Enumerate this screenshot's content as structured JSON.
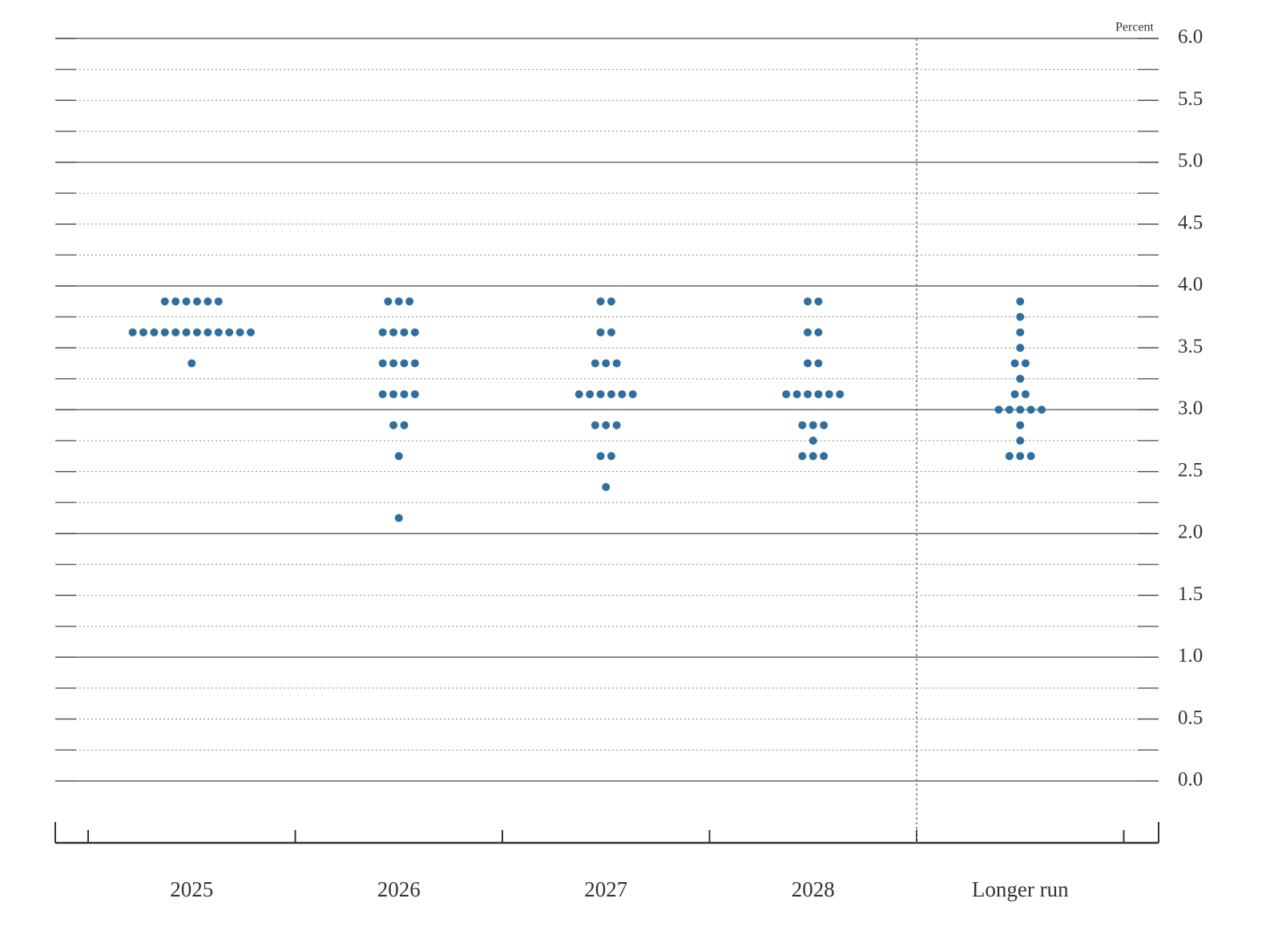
{
  "chart_data": {
    "type": "dot",
    "y_label": "Percent",
    "categories": [
      "2025",
      "2026",
      "2027",
      "2028",
      "Longer run"
    ],
    "color": "#2f6f9f",
    "dots": [
      [
        {
          "rate": 3.875,
          "count": 6
        },
        {
          "rate": 3.625,
          "count": 12
        },
        {
          "rate": 3.375,
          "count": 1
        }
      ],
      [
        {
          "rate": 3.875,
          "count": 3
        },
        {
          "rate": 3.625,
          "count": 4
        },
        {
          "rate": 3.375,
          "count": 4
        },
        {
          "rate": 3.125,
          "count": 4
        },
        {
          "rate": 2.875,
          "count": 2
        },
        {
          "rate": 2.625,
          "count": 1
        },
        {
          "rate": 2.125,
          "count": 1
        }
      ],
      [
        {
          "rate": 3.875,
          "count": 2
        },
        {
          "rate": 3.625,
          "count": 2
        },
        {
          "rate": 3.375,
          "count": 3
        },
        {
          "rate": 3.125,
          "count": 6
        },
        {
          "rate": 2.875,
          "count": 3
        },
        {
          "rate": 2.625,
          "count": 2
        },
        {
          "rate": 2.375,
          "count": 1
        }
      ],
      [
        {
          "rate": 3.875,
          "count": 2
        },
        {
          "rate": 3.625,
          "count": 2
        },
        {
          "rate": 3.375,
          "count": 2
        },
        {
          "rate": 3.125,
          "count": 6
        },
        {
          "rate": 2.875,
          "count": 3
        },
        {
          "rate": 2.75,
          "count": 1
        },
        {
          "rate": 2.625,
          "count": 3
        }
      ],
      [
        {
          "rate": 3.875,
          "count": 1
        },
        {
          "rate": 3.75,
          "count": 1
        },
        {
          "rate": 3.625,
          "count": 1
        },
        {
          "rate": 3.5,
          "count": 1
        },
        {
          "rate": 3.375,
          "count": 2
        },
        {
          "rate": 3.25,
          "count": 1
        },
        {
          "rate": 3.125,
          "count": 2
        },
        {
          "rate": 3,
          "count": 5
        },
        {
          "rate": 2.875,
          "count": 1
        },
        {
          "rate": 2.75,
          "count": 1
        },
        {
          "rate": 2.625,
          "count": 3
        }
      ]
    ],
    "ylim": [
      -0.5,
      6
    ],
    "yticks": [
      {
        "value": 0,
        "label": "0.0"
      },
      0.5,
      {
        "value": 1,
        "label": "1.0"
      },
      1.5,
      {
        "value": 2,
        "label": "2.0"
      },
      2.5,
      {
        "value": 3,
        "label": "3.0"
      },
      3.5,
      {
        "value": 4,
        "label": "4.0"
      },
      4.5,
      {
        "value": 5,
        "label": "5.0"
      },
      5.5,
      {
        "value": 6,
        "label": "6.0"
      }
    ],
    "minor_yticks": [
      0.25,
      0.75,
      1.25,
      1.75,
      2.25,
      2.75,
      3.25,
      3.75,
      4.25,
      4.75,
      5.25,
      5.75
    ],
    "grid": true
  }
}
